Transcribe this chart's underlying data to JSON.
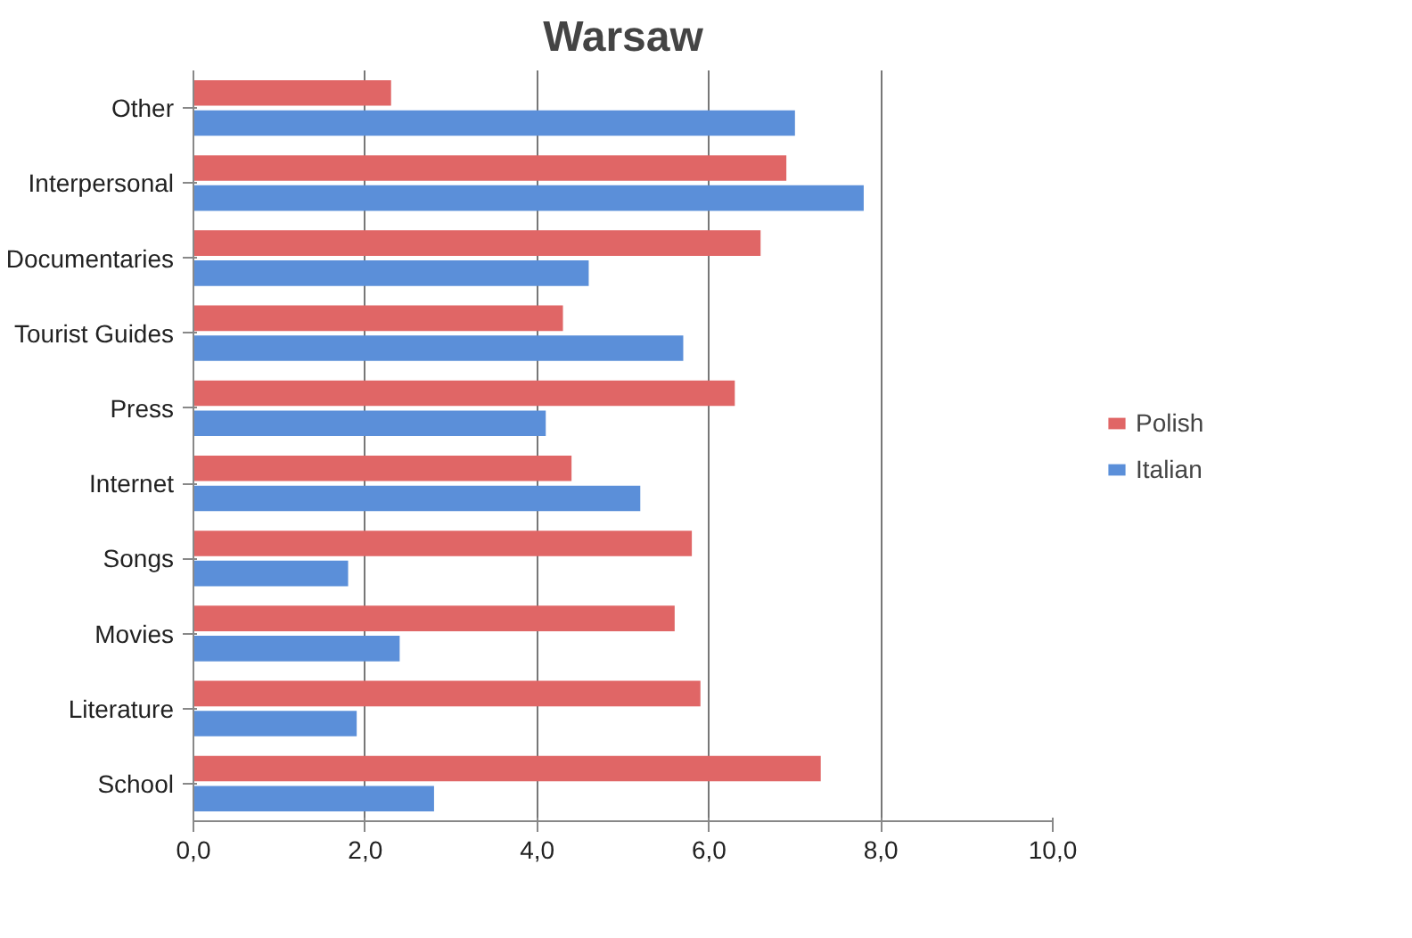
{
  "chart_data": {
    "type": "bar",
    "orientation": "horizontal",
    "title": "Warsaw",
    "categories": [
      "Other",
      "Interpersonal",
      "Documentaries",
      "Tourist Guides",
      "Press",
      "Internet",
      "Songs",
      "Movies",
      "Literature",
      "School"
    ],
    "series": [
      {
        "name": "Polish",
        "color": "#e06666",
        "values": [
          2.3,
          6.9,
          6.6,
          4.3,
          6.3,
          4.4,
          5.8,
          5.6,
          5.9,
          7.3
        ]
      },
      {
        "name": "Italian",
        "color": "#5b8fd9",
        "values": [
          7.0,
          7.8,
          4.6,
          5.7,
          4.1,
          5.2,
          1.8,
          2.4,
          1.9,
          2.8
        ]
      }
    ],
    "xlim": [
      0,
      10
    ],
    "xticks": [
      {
        "value": 0,
        "label": "0,0"
      },
      {
        "value": 2,
        "label": "2,0"
      },
      {
        "value": 4,
        "label": "4,0"
      },
      {
        "value": 6,
        "label": "6,0"
      },
      {
        "value": 8,
        "label": "8,0"
      },
      {
        "value": 10,
        "label": "10,0"
      }
    ],
    "grid": "x",
    "legend": "right"
  }
}
